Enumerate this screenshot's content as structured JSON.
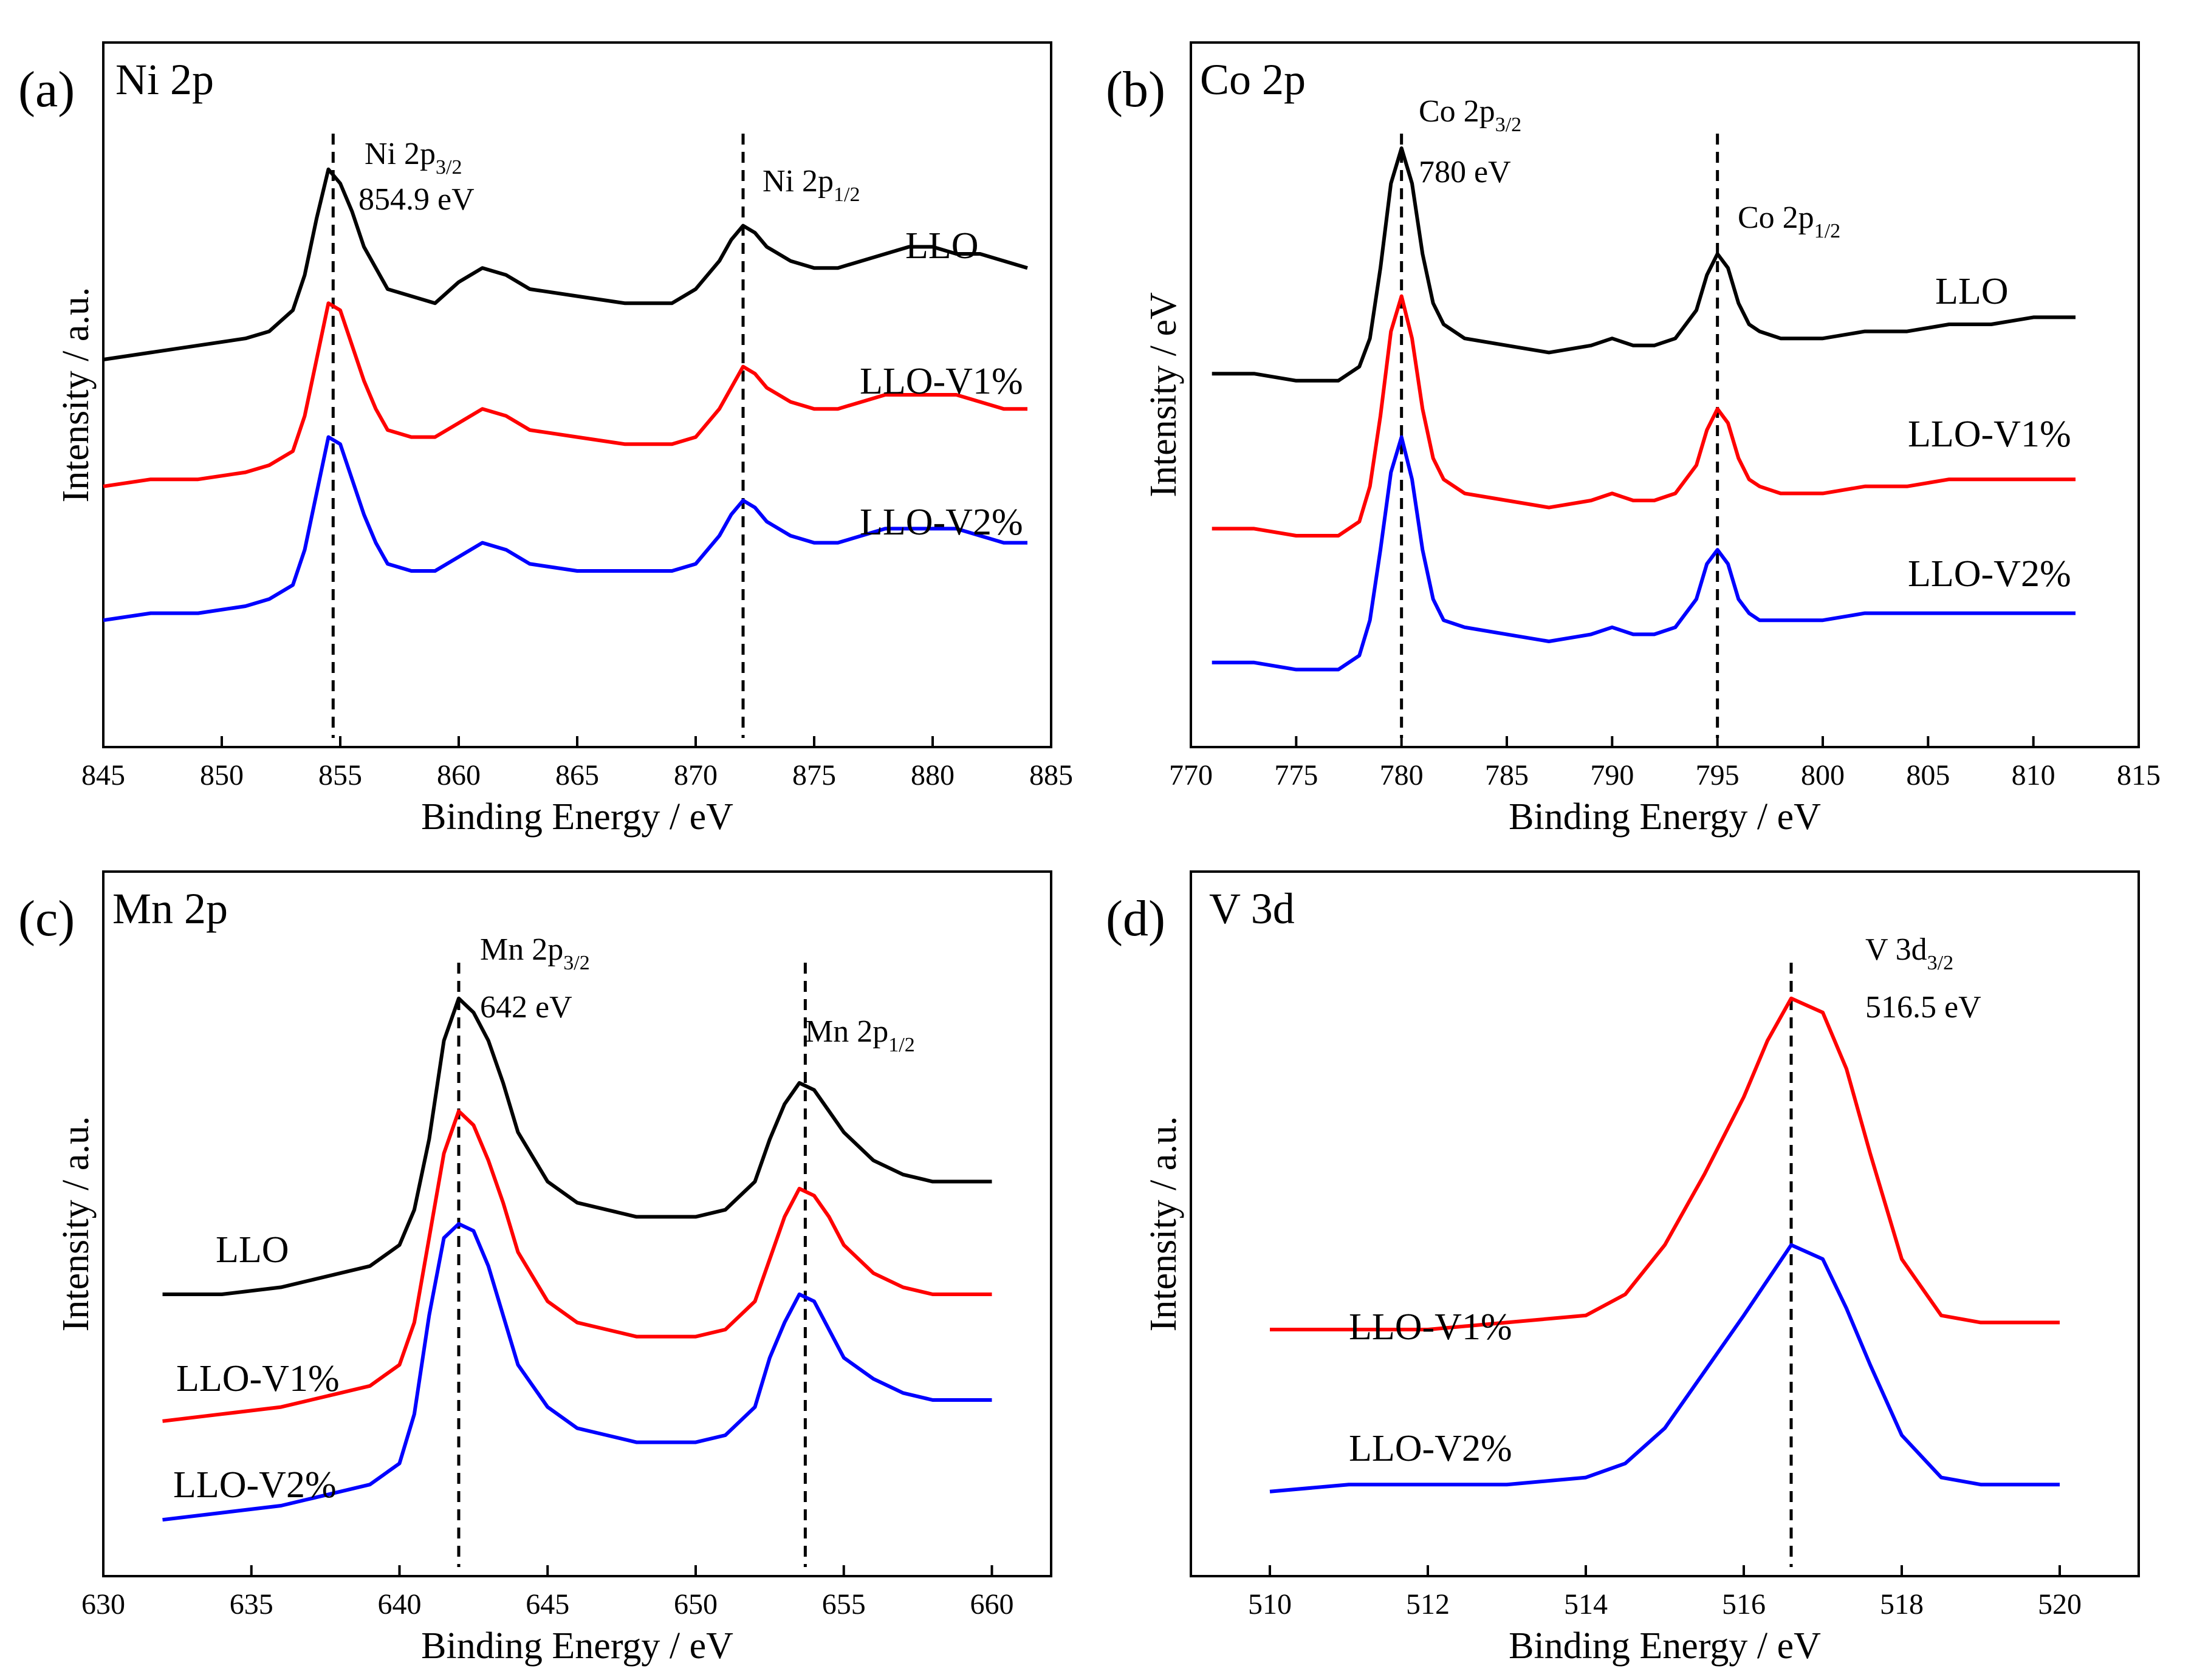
{
  "chart_data": [
    {
      "panel": "(a)",
      "title": "Ni 2p",
      "type": "line",
      "xlabel": "Binding Energy / eV",
      "ylabel": "Intensity / a.u.",
      "xlim": [
        845,
        885
      ],
      "xticks": [
        845,
        850,
        855,
        860,
        865,
        870,
        875,
        880,
        885
      ],
      "ylim": [
        0,
        1
      ],
      "peaks": [
        {
          "base": "Ni 2p",
          "sub": "3/2",
          "energy": "854.9 eV",
          "x": 854.7
        },
        {
          "base": "Ni 2p",
          "sub": "1/2",
          "energy": "",
          "x": 872.0
        }
      ],
      "series": [
        {
          "name": "LLO",
          "color": "#000000",
          "x": [
            845,
            847,
            849,
            851,
            852,
            853,
            853.5,
            854,
            854.5,
            855,
            855.5,
            856,
            856.5,
            857,
            858,
            859,
            860,
            861,
            862,
            863,
            865,
            867,
            869,
            870,
            871,
            871.5,
            872,
            872.5,
            873,
            874,
            875,
            876,
            877,
            878,
            879,
            880,
            881,
            882,
            883,
            884
          ],
          "y": [
            0.55,
            0.56,
            0.57,
            0.58,
            0.59,
            0.62,
            0.67,
            0.75,
            0.82,
            0.8,
            0.76,
            0.71,
            0.68,
            0.65,
            0.64,
            0.63,
            0.66,
            0.68,
            0.67,
            0.65,
            0.64,
            0.63,
            0.63,
            0.65,
            0.69,
            0.72,
            0.74,
            0.73,
            0.71,
            0.69,
            0.68,
            0.68,
            0.69,
            0.7,
            0.71,
            0.71,
            0.7,
            0.7,
            0.69,
            0.68
          ]
        },
        {
          "name": "LLO-V1%",
          "color": "#ff0000",
          "x": [
            845,
            847,
            849,
            851,
            852,
            853,
            853.5,
            854,
            854.5,
            855,
            855.5,
            856,
            856.5,
            857,
            858,
            859,
            860,
            861,
            862,
            863,
            865,
            867,
            869,
            870,
            871,
            871.5,
            872,
            872.5,
            873,
            874,
            875,
            876,
            877,
            878,
            879,
            880,
            881,
            882,
            883,
            884
          ],
          "y": [
            0.37,
            0.38,
            0.38,
            0.39,
            0.4,
            0.42,
            0.47,
            0.55,
            0.63,
            0.62,
            0.57,
            0.52,
            0.48,
            0.45,
            0.44,
            0.44,
            0.46,
            0.48,
            0.47,
            0.45,
            0.44,
            0.43,
            0.43,
            0.44,
            0.48,
            0.51,
            0.54,
            0.53,
            0.51,
            0.49,
            0.48,
            0.48,
            0.49,
            0.5,
            0.5,
            0.5,
            0.5,
            0.49,
            0.48,
            0.48
          ]
        },
        {
          "name": "LLO-V2%",
          "color": "#0000ff",
          "x": [
            845,
            847,
            849,
            851,
            852,
            853,
            853.5,
            854,
            854.5,
            855,
            855.5,
            856,
            856.5,
            857,
            858,
            859,
            860,
            861,
            862,
            863,
            865,
            867,
            869,
            870,
            871,
            871.5,
            872,
            872.5,
            873,
            874,
            875,
            876,
            877,
            878,
            879,
            880,
            881,
            882,
            883,
            884
          ],
          "y": [
            0.18,
            0.19,
            0.19,
            0.2,
            0.21,
            0.23,
            0.28,
            0.36,
            0.44,
            0.43,
            0.38,
            0.33,
            0.29,
            0.26,
            0.25,
            0.25,
            0.27,
            0.29,
            0.28,
            0.26,
            0.25,
            0.25,
            0.25,
            0.26,
            0.3,
            0.33,
            0.35,
            0.34,
            0.32,
            0.3,
            0.29,
            0.29,
            0.3,
            0.31,
            0.31,
            0.31,
            0.31,
            0.3,
            0.29,
            0.29
          ]
        }
      ]
    },
    {
      "panel": "(b)",
      "title": "Co 2p",
      "type": "line",
      "xlabel": "Binding Energy / eV",
      "ylabel": "Intensity / eV",
      "xlim": [
        770,
        815
      ],
      "xticks": [
        770,
        775,
        780,
        785,
        790,
        795,
        800,
        805,
        810,
        815
      ],
      "ylim": [
        0,
        1
      ],
      "peaks": [
        {
          "base": "Co 2p",
          "sub": "3/2",
          "energy": "780 eV",
          "x": 780.0
        },
        {
          "base": "Co 2p",
          "sub": "1/2",
          "energy": "",
          "x": 795.0
        }
      ],
      "series": [
        {
          "name": "LLO",
          "color": "#000000",
          "x": [
            771,
            773,
            775,
            777,
            778,
            778.5,
            779,
            779.5,
            780,
            780.5,
            781,
            781.5,
            782,
            783,
            785,
            787,
            789,
            790,
            791,
            792,
            793,
            794,
            794.5,
            795,
            795.5,
            796,
            796.5,
            797,
            798,
            800,
            802,
            804,
            806,
            808,
            810,
            812
          ],
          "y": [
            0.53,
            0.53,
            0.52,
            0.52,
            0.54,
            0.58,
            0.68,
            0.8,
            0.85,
            0.8,
            0.7,
            0.63,
            0.6,
            0.58,
            0.57,
            0.56,
            0.57,
            0.58,
            0.57,
            0.57,
            0.58,
            0.62,
            0.67,
            0.7,
            0.68,
            0.63,
            0.6,
            0.59,
            0.58,
            0.58,
            0.59,
            0.59,
            0.6,
            0.6,
            0.61,
            0.61
          ]
        },
        {
          "name": "LLO-V1%",
          "color": "#ff0000",
          "x": [
            771,
            773,
            775,
            777,
            778,
            778.5,
            779,
            779.5,
            780,
            780.5,
            781,
            781.5,
            782,
            783,
            785,
            787,
            789,
            790,
            791,
            792,
            793,
            794,
            794.5,
            795,
            795.5,
            796,
            796.5,
            797,
            798,
            800,
            802,
            804,
            806,
            808,
            810,
            812
          ],
          "y": [
            0.31,
            0.31,
            0.3,
            0.3,
            0.32,
            0.37,
            0.47,
            0.59,
            0.64,
            0.58,
            0.48,
            0.41,
            0.38,
            0.36,
            0.35,
            0.34,
            0.35,
            0.36,
            0.35,
            0.35,
            0.36,
            0.4,
            0.45,
            0.48,
            0.46,
            0.41,
            0.38,
            0.37,
            0.36,
            0.36,
            0.37,
            0.37,
            0.38,
            0.38,
            0.38,
            0.38
          ]
        },
        {
          "name": "LLO-V2%",
          "color": "#0000ff",
          "x": [
            771,
            773,
            775,
            777,
            778,
            778.5,
            779,
            779.5,
            780,
            780.5,
            781,
            781.5,
            782,
            783,
            785,
            787,
            789,
            790,
            791,
            792,
            793,
            794,
            794.5,
            795,
            795.5,
            796,
            796.5,
            797,
            798,
            800,
            802,
            804,
            806,
            808,
            810,
            812
          ],
          "y": [
            0.12,
            0.12,
            0.11,
            0.11,
            0.13,
            0.18,
            0.28,
            0.39,
            0.44,
            0.38,
            0.28,
            0.21,
            0.18,
            0.17,
            0.16,
            0.15,
            0.16,
            0.17,
            0.16,
            0.16,
            0.17,
            0.21,
            0.26,
            0.28,
            0.26,
            0.21,
            0.19,
            0.18,
            0.18,
            0.18,
            0.19,
            0.19,
            0.19,
            0.19,
            0.19,
            0.19
          ]
        }
      ]
    },
    {
      "panel": "(c)",
      "title": "Mn 2p",
      "type": "line",
      "xlabel": "Binding Energy / eV",
      "ylabel": "Intensity / a.u.",
      "xlim": [
        630,
        662
      ],
      "xticks": [
        630,
        635,
        640,
        645,
        650,
        655,
        660
      ],
      "ylim": [
        0,
        1
      ],
      "peaks": [
        {
          "base": "Mn 2p",
          "sub": "3/2",
          "energy": "642 eV",
          "x": 642.0
        },
        {
          "base": "Mn 2p",
          "sub": "1/2",
          "energy": "",
          "x": 653.7
        }
      ],
      "series": [
        {
          "name": "LLO",
          "color": "#000000",
          "x": [
            632,
            634,
            636,
            637,
            638,
            639,
            640,
            640.5,
            641,
            641.5,
            642,
            642.5,
            643,
            643.5,
            644,
            645,
            646,
            647,
            648,
            649,
            650,
            651,
            652,
            652.5,
            653,
            653.5,
            654,
            654.5,
            655,
            656,
            657,
            658,
            659,
            660
          ],
          "y": [
            0.4,
            0.4,
            0.41,
            0.42,
            0.43,
            0.44,
            0.47,
            0.52,
            0.62,
            0.76,
            0.82,
            0.8,
            0.76,
            0.7,
            0.63,
            0.56,
            0.53,
            0.52,
            0.51,
            0.51,
            0.51,
            0.52,
            0.56,
            0.62,
            0.67,
            0.7,
            0.69,
            0.66,
            0.63,
            0.59,
            0.57,
            0.56,
            0.56,
            0.56
          ]
        },
        {
          "name": "LLO-V1%",
          "color": "#ff0000",
          "x": [
            632,
            634,
            636,
            637,
            638,
            639,
            640,
            640.5,
            641,
            641.5,
            642,
            642.5,
            643,
            643.5,
            644,
            645,
            646,
            647,
            648,
            649,
            650,
            651,
            652,
            652.5,
            653,
            653.5,
            654,
            654.5,
            655,
            656,
            657,
            658,
            659,
            660
          ],
          "y": [
            0.22,
            0.23,
            0.24,
            0.25,
            0.26,
            0.27,
            0.3,
            0.36,
            0.48,
            0.6,
            0.66,
            0.64,
            0.59,
            0.53,
            0.46,
            0.39,
            0.36,
            0.35,
            0.34,
            0.34,
            0.34,
            0.35,
            0.39,
            0.45,
            0.51,
            0.55,
            0.54,
            0.51,
            0.47,
            0.43,
            0.41,
            0.4,
            0.4,
            0.4
          ]
        },
        {
          "name": "LLO-V2%",
          "color": "#0000ff",
          "x": [
            632,
            634,
            636,
            637,
            638,
            639,
            640,
            640.5,
            641,
            641.5,
            642,
            642.5,
            643,
            643.5,
            644,
            645,
            646,
            647,
            648,
            649,
            650,
            651,
            652,
            652.5,
            653,
            653.5,
            654,
            654.5,
            655,
            656,
            657,
            658,
            659,
            660
          ],
          "y": [
            0.08,
            0.09,
            0.1,
            0.11,
            0.12,
            0.13,
            0.16,
            0.23,
            0.37,
            0.48,
            0.5,
            0.49,
            0.44,
            0.37,
            0.3,
            0.24,
            0.21,
            0.2,
            0.19,
            0.19,
            0.19,
            0.2,
            0.24,
            0.31,
            0.36,
            0.4,
            0.39,
            0.35,
            0.31,
            0.28,
            0.26,
            0.25,
            0.25,
            0.25
          ]
        }
      ]
    },
    {
      "panel": "(d)",
      "title": "V 3d",
      "type": "line",
      "xlabel": "Binding Energy / eV",
      "ylabel": "Intensity / a.u.",
      "xlim": [
        509,
        521
      ],
      "xticks": [
        510,
        512,
        514,
        516,
        518,
        520
      ],
      "ylim": [
        0,
        1
      ],
      "peaks": [
        {
          "base": "V 3d",
          "sub": "3/2",
          "energy": "516.5 eV",
          "x": 516.6
        }
      ],
      "series": [
        {
          "name": "LLO-V1%",
          "color": "#ff0000",
          "x": [
            510,
            511,
            512,
            513,
            514,
            514.5,
            515,
            515.5,
            516,
            516.3,
            516.6,
            517,
            517.3,
            517.6,
            518,
            518.5,
            519,
            520
          ],
          "y": [
            0.35,
            0.35,
            0.35,
            0.36,
            0.37,
            0.4,
            0.47,
            0.57,
            0.68,
            0.76,
            0.82,
            0.8,
            0.72,
            0.6,
            0.45,
            0.37,
            0.36,
            0.36
          ]
        },
        {
          "name": "LLO-V2%",
          "color": "#0000ff",
          "x": [
            510,
            511,
            512,
            513,
            514,
            514.5,
            515,
            515.5,
            516,
            516.3,
            516.6,
            517,
            517.3,
            517.6,
            518,
            518.5,
            519,
            520
          ],
          "y": [
            0.12,
            0.13,
            0.13,
            0.13,
            0.14,
            0.16,
            0.21,
            0.29,
            0.37,
            0.42,
            0.47,
            0.45,
            0.38,
            0.3,
            0.2,
            0.14,
            0.13,
            0.13
          ]
        }
      ]
    }
  ]
}
